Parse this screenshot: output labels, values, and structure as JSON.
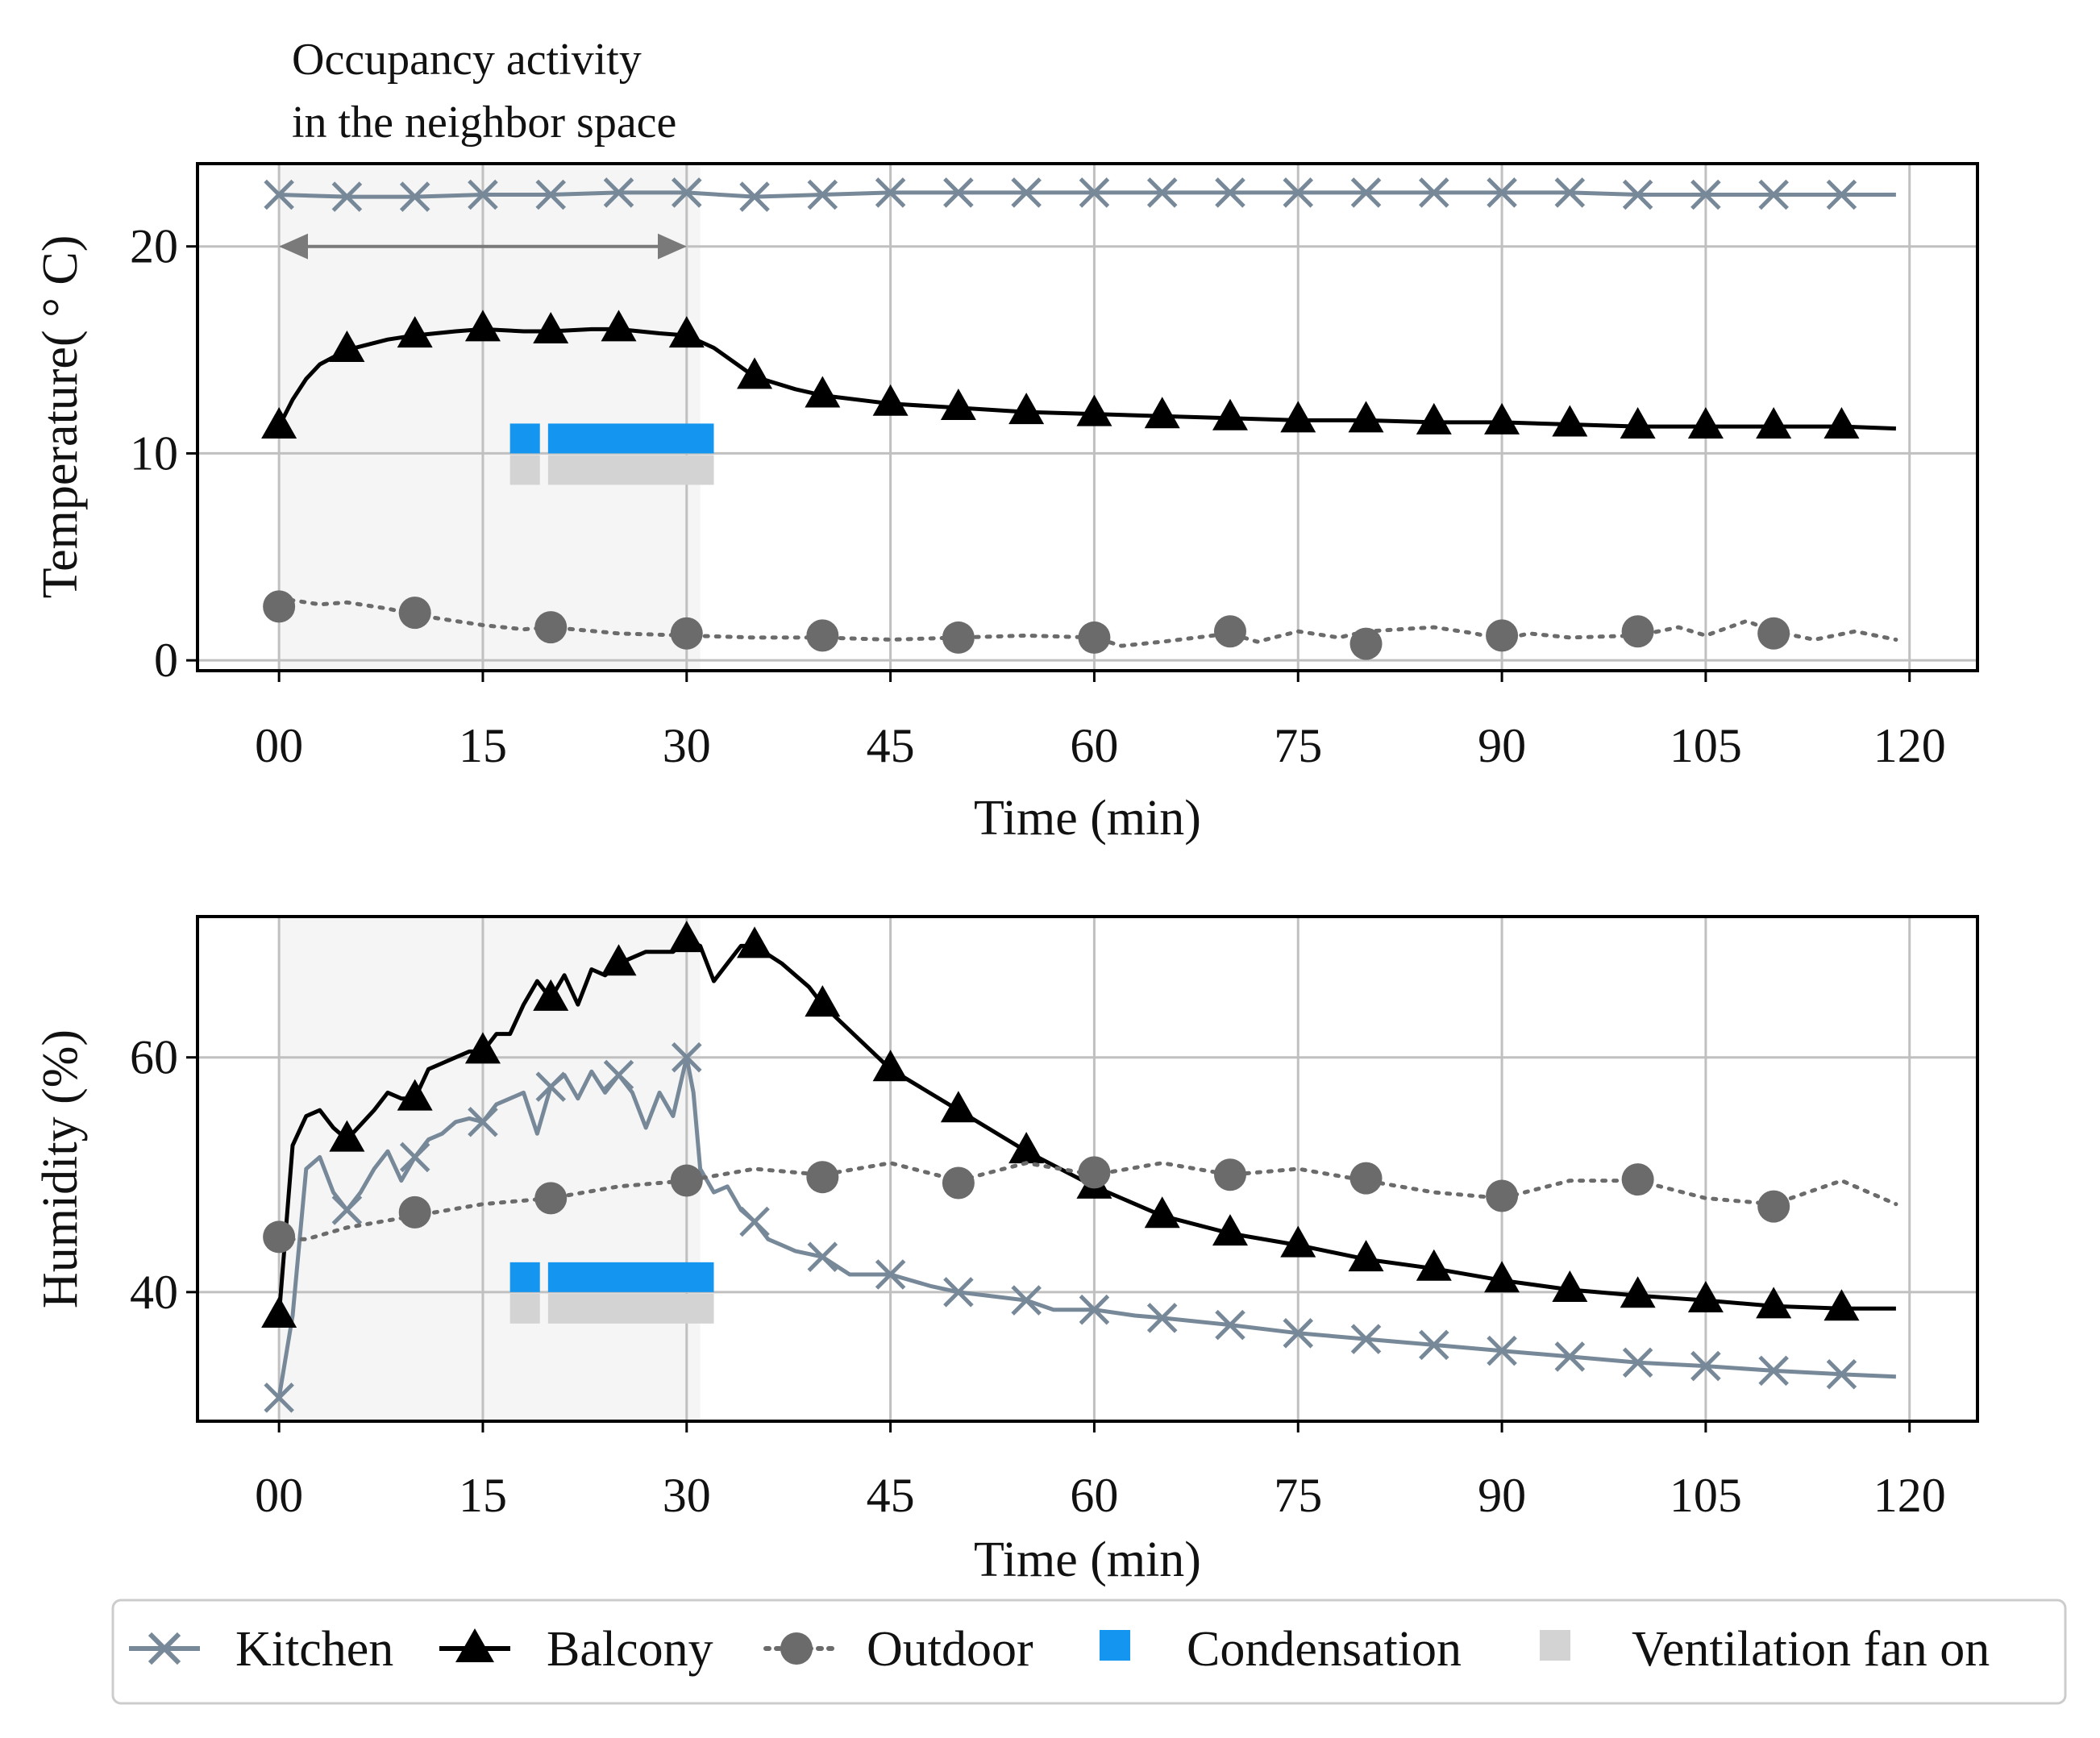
{
  "annotation": {
    "line1": "Occupancy activity",
    "line2": "in the neighbor space",
    "x_start": 0,
    "x_end": 30
  },
  "legend": {
    "kitchen": "Kitchen",
    "balcony": "Balcony",
    "outdoor": "Outdoor",
    "condensation": "Condensation",
    "ventilation": "Ventilation fan on"
  },
  "colors": {
    "kitchen": "#778899",
    "balcony": "#000000",
    "outdoor": "#6b6b6b",
    "condensation": "#1496f0",
    "ventilation": "#d3d3d3",
    "occupancy_shade": "#f5f5f5"
  },
  "chart_data": [
    {
      "type": "line",
      "title": "",
      "xlabel": "Time (min)",
      "ylabel": "Temperature( ° C)",
      "xlim": [
        -6,
        125
      ],
      "ylim": [
        -0.5,
        24
      ],
      "xticks": [
        0,
        15,
        30,
        45,
        60,
        75,
        90,
        105,
        120
      ],
      "xtick_labels": [
        "00",
        "15",
        "30",
        "45",
        "60",
        "75",
        "90",
        "105",
        "120"
      ],
      "yticks": [
        0,
        10,
        20
      ],
      "ytick_labels": [
        "0",
        "10",
        "20"
      ],
      "grid": true,
      "occupancy_span": [
        0,
        31
      ],
      "condensation_intervals": [
        [
          17,
          19.2
        ],
        [
          19.8,
          32
        ]
      ],
      "ventilation_intervals": [
        [
          17,
          19.2
        ],
        [
          19.8,
          32
        ]
      ],
      "condensation_level": 10,
      "series": [
        {
          "name": "Kitchen",
          "style": "x-marker",
          "x": [
            0,
            5,
            10,
            15,
            20,
            25,
            30,
            35,
            40,
            45,
            50,
            55,
            60,
            65,
            70,
            75,
            80,
            85,
            90,
            95,
            100,
            105,
            110,
            115,
            119
          ],
          "values": [
            22.5,
            22.4,
            22.4,
            22.5,
            22.5,
            22.6,
            22.6,
            22.4,
            22.5,
            22.6,
            22.6,
            22.6,
            22.6,
            22.6,
            22.6,
            22.6,
            22.6,
            22.6,
            22.6,
            22.6,
            22.5,
            22.5,
            22.5,
            22.5,
            22.5
          ],
          "marker_x": [
            0,
            5,
            10,
            15,
            20,
            25,
            30,
            35,
            40,
            45,
            50,
            55,
            60,
            65,
            70,
            75,
            80,
            85,
            90,
            95,
            100,
            105,
            110,
            115
          ]
        },
        {
          "name": "Balcony",
          "style": "triangle-marker",
          "x": [
            0,
            1,
            2,
            3,
            5,
            8,
            10,
            13,
            15,
            18,
            20,
            23,
            25,
            28,
            30,
            32,
            35,
            38,
            40,
            45,
            50,
            55,
            60,
            65,
            70,
            75,
            80,
            85,
            90,
            95,
            100,
            105,
            110,
            115,
            119
          ],
          "values": [
            11.3,
            12.6,
            13.6,
            14.3,
            15.0,
            15.5,
            15.7,
            15.9,
            16.0,
            15.9,
            15.9,
            16.0,
            16.0,
            15.8,
            15.7,
            15.1,
            13.7,
            13.1,
            12.8,
            12.4,
            12.2,
            12.0,
            11.9,
            11.8,
            11.7,
            11.6,
            11.6,
            11.5,
            11.5,
            11.4,
            11.3,
            11.3,
            11.3,
            11.3,
            11.2
          ],
          "marker_x": [
            0,
            5,
            10,
            15,
            20,
            25,
            30,
            35,
            40,
            45,
            50,
            55,
            60,
            65,
            70,
            75,
            80,
            85,
            90,
            95,
            100,
            105,
            110,
            115
          ]
        },
        {
          "name": "Outdoor",
          "style": "dotted-circle",
          "x": [
            0,
            3,
            5,
            8,
            10,
            13,
            15,
            18,
            20,
            25,
            30,
            35,
            40,
            45,
            50,
            55,
            60,
            62,
            65,
            70,
            72,
            75,
            78,
            80,
            85,
            88,
            90,
            92,
            95,
            100,
            103,
            105,
            108,
            110,
            113,
            116,
            119
          ],
          "values": [
            3.0,
            2.7,
            2.8,
            2.5,
            2.2,
            1.9,
            1.7,
            1.5,
            1.6,
            1.3,
            1.2,
            1.1,
            1.1,
            1.0,
            1.1,
            1.2,
            1.1,
            0.7,
            0.9,
            1.3,
            0.9,
            1.4,
            1.1,
            1.4,
            1.6,
            1.3,
            1.0,
            1.3,
            1.1,
            1.2,
            1.6,
            1.2,
            1.9,
            1.4,
            1.0,
            1.4,
            1.0
          ],
          "marker_x": [
            0,
            10,
            20,
            30,
            40,
            50,
            60,
            70,
            80,
            90,
            100,
            110
          ],
          "marker_values": [
            2.6,
            2.3,
            1.6,
            1.3,
            1.2,
            1.1,
            1.1,
            1.4,
            0.8,
            1.2,
            1.4,
            1.3
          ]
        }
      ]
    },
    {
      "type": "line",
      "title": "",
      "xlabel": "Time (min)",
      "ylabel": "Humidity (%)",
      "xlim": [
        -6,
        125
      ],
      "ylim": [
        29,
        72
      ],
      "xticks": [
        0,
        15,
        30,
        45,
        60,
        75,
        90,
        105,
        120
      ],
      "xtick_labels": [
        "00",
        "15",
        "30",
        "45",
        "60",
        "75",
        "90",
        "105",
        "120"
      ],
      "yticks": [
        40,
        60
      ],
      "ytick_labels": [
        "40",
        "60"
      ],
      "grid": true,
      "occupancy_span": [
        0,
        31
      ],
      "condensation_intervals": [
        [
          17,
          19.2
        ],
        [
          19.8,
          32
        ]
      ],
      "ventilation_intervals": [
        [
          17,
          19.2
        ],
        [
          19.8,
          32
        ]
      ],
      "condensation_level": 40,
      "series": [
        {
          "name": "Kitchen",
          "style": "x-marker",
          "x": [
            0,
            1,
            2,
            3,
            4,
            5,
            6,
            7,
            8,
            9,
            10,
            11,
            12,
            13,
            14,
            15,
            16,
            17,
            18,
            19,
            20,
            21,
            22,
            23,
            24,
            25,
            26,
            27,
            28,
            29,
            30,
            30.5,
            31,
            32,
            33,
            34,
            35,
            36,
            37,
            38,
            40,
            42,
            45,
            48,
            50,
            55,
            57,
            60,
            63,
            65,
            70,
            75,
            80,
            85,
            90,
            95,
            100,
            105,
            110,
            115,
            119
          ],
          "values": [
            31.0,
            38.0,
            50.5,
            51.5,
            48.5,
            47.0,
            48.5,
            50.5,
            52.0,
            49.5,
            51.5,
            53.0,
            53.5,
            54.5,
            54.8,
            54.5,
            56.0,
            56.5,
            57.0,
            53.5,
            57.5,
            58.5,
            56.5,
            58.8,
            57.0,
            58.5,
            57.0,
            54.0,
            57.0,
            55.0,
            60.0,
            57.0,
            50.5,
            48.5,
            49.0,
            47.0,
            46.0,
            44.5,
            44.0,
            43.5,
            43.0,
            41.5,
            41.5,
            40.5,
            40.0,
            39.3,
            38.5,
            38.5,
            38.0,
            37.8,
            37.2,
            36.5,
            36.0,
            35.5,
            35.0,
            34.5,
            34.0,
            33.7,
            33.3,
            33.0,
            32.8
          ],
          "marker_x": [
            0,
            5,
            10,
            15,
            20,
            25,
            30,
            35,
            40,
            45,
            50,
            55,
            60,
            65,
            70,
            75,
            80,
            85,
            90,
            95,
            100,
            105,
            110,
            115
          ],
          "marker_values": [
            31.0,
            47.0,
            51.5,
            54.5,
            57.5,
            58.5,
            60.0,
            46.0,
            43.0,
            41.5,
            40.0,
            39.3,
            38.5,
            37.8,
            37.2,
            36.5,
            36.0,
            35.5,
            35.0,
            34.5,
            34.0,
            33.7,
            33.3,
            33.0
          ]
        },
        {
          "name": "Balcony",
          "style": "triangle-marker",
          "x": [
            0,
            1,
            2,
            3,
            4,
            5,
            7,
            8,
            9,
            10,
            11,
            12,
            13,
            14,
            15,
            16,
            17,
            18,
            19,
            20,
            21,
            22,
            23,
            24,
            25,
            27,
            29,
            30,
            31,
            32,
            33,
            34,
            35,
            37,
            39,
            40,
            45,
            50,
            55,
            60,
            65,
            70,
            75,
            80,
            85,
            90,
            95,
            100,
            105,
            110,
            115,
            119
          ],
          "values": [
            38.0,
            52.5,
            55.0,
            55.5,
            54.0,
            53.0,
            55.5,
            57.0,
            56.5,
            56.5,
            59.0,
            59.5,
            60.0,
            60.5,
            60.5,
            62.0,
            62.0,
            64.5,
            66.5,
            65.0,
            67.0,
            64.5,
            67.5,
            67.0,
            68.0,
            69.0,
            69.0,
            70.0,
            69.5,
            66.5,
            68.0,
            69.5,
            69.5,
            68.0,
            66.0,
            64.5,
            59.0,
            55.5,
            52.0,
            49.0,
            46.5,
            45.0,
            44.0,
            42.8,
            42.0,
            41.0,
            40.2,
            39.7,
            39.3,
            38.8,
            38.6,
            38.6
          ],
          "marker_x": [
            0,
            5,
            10,
            15,
            20,
            25,
            30,
            35,
            40,
            45,
            50,
            55,
            60,
            65,
            70,
            75,
            80,
            85,
            90,
            95,
            100,
            105,
            110,
            115
          ],
          "marker_values": [
            38.0,
            53.0,
            56.5,
            60.5,
            65.0,
            68.0,
            70.0,
            69.5,
            64.5,
            59.0,
            55.5,
            52.0,
            49.0,
            46.5,
            45.0,
            44.0,
            42.8,
            42.0,
            41.0,
            40.2,
            39.7,
            39.3,
            38.8,
            38.6
          ]
        },
        {
          "name": "Outdoor",
          "style": "dotted-circle",
          "x": [
            0,
            2,
            5,
            10,
            15,
            20,
            25,
            30,
            35,
            40,
            45,
            50,
            55,
            60,
            65,
            70,
            75,
            80,
            85,
            90,
            95,
            100,
            105,
            110,
            115,
            119
          ],
          "values": [
            44.5,
            44.5,
            45.5,
            46.5,
            47.5,
            48.0,
            49.0,
            49.5,
            50.5,
            50.0,
            51.0,
            49.5,
            51.0,
            50.0,
            51.0,
            50.0,
            50.5,
            49.5,
            48.5,
            48.0,
            49.5,
            49.5,
            48.0,
            47.5,
            49.5,
            47.5
          ],
          "marker_x": [
            0,
            10,
            20,
            30,
            40,
            50,
            60,
            70,
            80,
            90,
            100,
            110
          ],
          "marker_values": [
            44.7,
            46.8,
            48.0,
            49.5,
            49.8,
            49.3,
            50.2,
            50.0,
            49.7,
            48.2,
            49.6,
            47.3
          ]
        }
      ]
    }
  ]
}
